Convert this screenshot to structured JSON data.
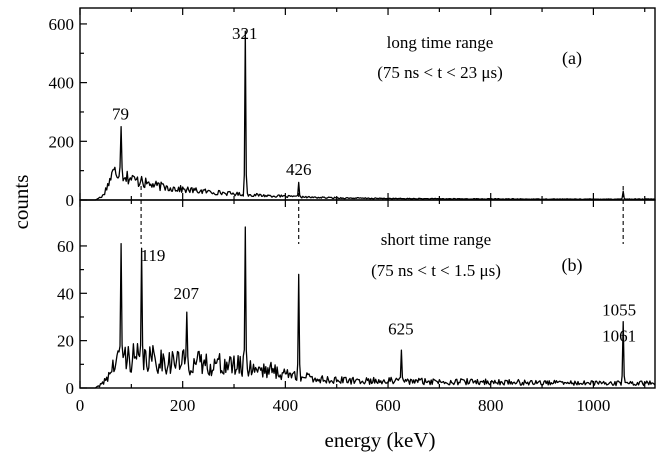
{
  "chart_data": {
    "type": "line",
    "xlabel": "energy (keV)",
    "ylabel": "counts",
    "xlim": [
      0,
      1120
    ],
    "x_ticks": [
      0,
      200,
      400,
      600,
      800,
      1000
    ],
    "guide_lines_keV": [
      119,
      426,
      1058
    ],
    "panels": [
      {
        "id": "a",
        "label": "(a)",
        "title_line1": "long time range",
        "title_line2": "(75 ns < t < 23 μs)",
        "ylim": [
          0,
          610
        ],
        "y_ticks": [
          0,
          200,
          400,
          600
        ],
        "seed": 17,
        "continuum": [
          [
            0,
            0
          ],
          [
            30,
            0
          ],
          [
            45,
            15
          ],
          [
            55,
            55
          ],
          [
            62,
            85
          ],
          [
            70,
            100
          ],
          [
            80,
            92
          ],
          [
            100,
            72
          ],
          [
            120,
            60
          ],
          [
            150,
            48
          ],
          [
            200,
            36
          ],
          [
            250,
            28
          ],
          [
            300,
            21
          ],
          [
            350,
            16
          ],
          [
            400,
            12
          ],
          [
            450,
            9
          ],
          [
            500,
            7
          ],
          [
            600,
            5
          ],
          [
            700,
            4
          ],
          [
            800,
            3.5
          ],
          [
            900,
            3
          ],
          [
            1000,
            3
          ],
          [
            1120,
            3
          ]
        ],
        "noise": 0.32,
        "peaks": [
          {
            "energy": 79,
            "height": 250
          },
          {
            "energy": 119,
            "height": 80
          },
          {
            "energy": 321,
            "height": 575
          },
          {
            "energy": 426,
            "height": 60
          },
          {
            "energy": 1058,
            "height": 30
          }
        ],
        "peak_labels": [
          {
            "text": "79",
            "energy": 79,
            "counts": 260
          },
          {
            "text": "321",
            "energy": 321,
            "counts": 535
          },
          {
            "text": "426",
            "energy": 426,
            "counts": 72
          }
        ]
      },
      {
        "id": "b",
        "label": "(b)",
        "title_line1": "short time range",
        "title_line2": "(75 ns < t < 1.5 μs)",
        "ylim": [
          0,
          68
        ],
        "y_ticks": [
          0,
          20,
          40,
          60
        ],
        "seed": 41,
        "continuum": [
          [
            0,
            0
          ],
          [
            30,
            0
          ],
          [
            45,
            2
          ],
          [
            60,
            7
          ],
          [
            70,
            11
          ],
          [
            90,
            13
          ],
          [
            140,
            12
          ],
          [
            200,
            11
          ],
          [
            260,
            10
          ],
          [
            320,
            9
          ],
          [
            360,
            8
          ],
          [
            400,
            6
          ],
          [
            450,
            4
          ],
          [
            520,
            3
          ],
          [
            600,
            3
          ],
          [
            800,
            2.5
          ],
          [
            1000,
            2
          ],
          [
            1120,
            2
          ]
        ],
        "noise": 0.5,
        "peaks": [
          {
            "energy": 79,
            "height": 61
          },
          {
            "energy": 119,
            "height": 59
          },
          {
            "energy": 207,
            "height": 32
          },
          {
            "energy": 321,
            "height": 68
          },
          {
            "energy": 426,
            "height": 48
          },
          {
            "energy": 625,
            "height": 16
          },
          {
            "energy": 1058,
            "height": 28
          }
        ],
        "peak_labels": [
          {
            "text": "119",
            "energy": 142,
            "counts": 52
          },
          {
            "text": "207",
            "energy": 207,
            "counts": 36
          },
          {
            "text": "625",
            "energy": 625,
            "counts": 21
          },
          {
            "text": "1055",
            "energy": 1050,
            "counts": 29
          },
          {
            "text": "1061",
            "energy": 1050,
            "counts": 18
          }
        ]
      }
    ]
  }
}
